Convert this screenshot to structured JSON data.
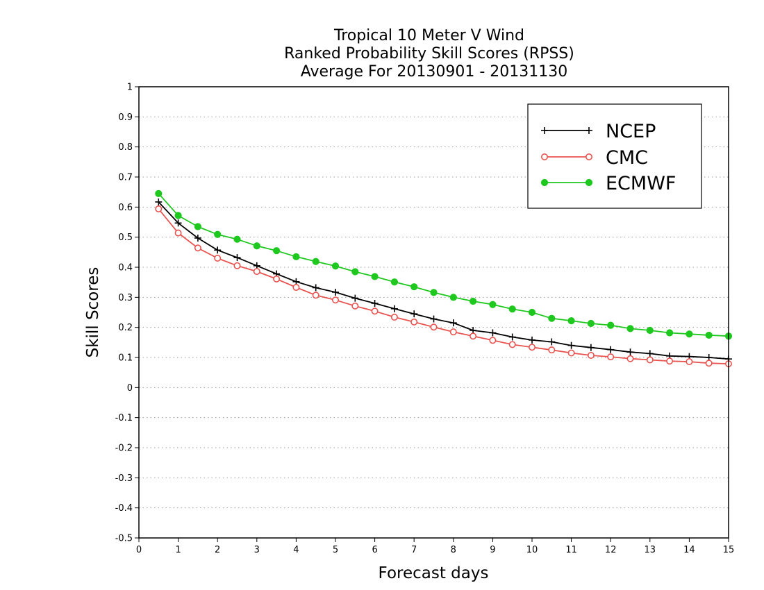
{
  "chart_data": {
    "type": "line",
    "title_lines": [
      "Tropical 10 Meter V Wind",
      "Ranked Probability Skill Scores (RPSS)",
      "Average For 20130901 - 20131130"
    ],
    "xlabel": "Forecast days",
    "ylabel": "Skill Scores",
    "xlim": [
      0,
      15
    ],
    "ylim": [
      -0.5,
      1
    ],
    "x_ticks": [
      "0",
      "1",
      "2",
      "3",
      "4",
      "5",
      "6",
      "7",
      "8",
      "9",
      "10",
      "11",
      "12",
      "13",
      "14",
      "15"
    ],
    "y_ticks": [
      "1",
      "0.9",
      "0.8",
      "0.7",
      "0.6",
      "0.5",
      "0.4",
      "0.3",
      "0.2",
      "0.1",
      "0",
      "-0.1",
      "-0.2",
      "-0.3",
      "-0.4",
      "-0.5"
    ],
    "grid": "horizontal dotted",
    "legend_position": "top-right",
    "x": [
      0.5,
      1,
      1.5,
      2,
      2.5,
      3,
      3.5,
      4,
      4.5,
      5,
      5.5,
      6,
      6.5,
      7,
      7.5,
      8,
      8.5,
      9,
      9.5,
      10,
      10.5,
      11,
      11.5,
      12,
      12.5,
      13,
      13.5,
      14,
      14.5,
      15
    ],
    "series": [
      {
        "name": "NCEP",
        "color": "#000000",
        "marker": "plus",
        "values": [
          0.617,
          0.547,
          0.497,
          0.457,
          0.432,
          0.405,
          0.378,
          0.352,
          0.332,
          0.317,
          0.297,
          0.28,
          0.262,
          0.245,
          0.228,
          0.215,
          0.19,
          0.182,
          0.168,
          0.158,
          0.152,
          0.14,
          0.133,
          0.126,
          0.118,
          0.113,
          0.105,
          0.103,
          0.1,
          0.095
        ]
      },
      {
        "name": "CMC",
        "color": "#e8534f",
        "marker": "open-circle",
        "values": [
          0.594,
          0.514,
          0.464,
          0.43,
          0.405,
          0.386,
          0.361,
          0.333,
          0.307,
          0.291,
          0.271,
          0.254,
          0.234,
          0.218,
          0.201,
          0.185,
          0.171,
          0.157,
          0.143,
          0.134,
          0.125,
          0.115,
          0.107,
          0.102,
          0.096,
          0.092,
          0.088,
          0.086,
          0.081,
          0.079
        ]
      },
      {
        "name": "ECMWF",
        "color": "#1ec81e",
        "marker": "filled-circle",
        "values": [
          0.645,
          0.572,
          0.535,
          0.509,
          0.493,
          0.471,
          0.455,
          0.435,
          0.419,
          0.404,
          0.385,
          0.369,
          0.351,
          0.335,
          0.316,
          0.3,
          0.287,
          0.276,
          0.261,
          0.25,
          0.23,
          0.222,
          0.213,
          0.207,
          0.196,
          0.19,
          0.182,
          0.178,
          0.174,
          0.171
        ]
      }
    ]
  }
}
